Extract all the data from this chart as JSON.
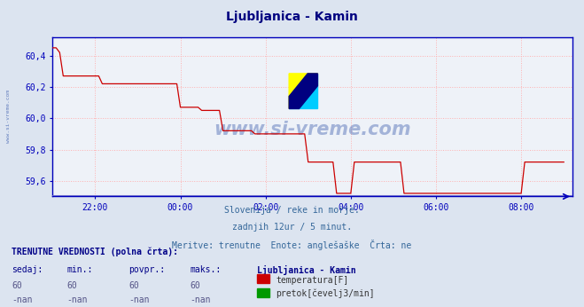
{
  "title": "Ljubljanica - Kamin",
  "title_color": "#000080",
  "bg_color": "#dce4f0",
  "plot_bg_color": "#eef2f8",
  "grid_color": "#ffb0b0",
  "axis_color": "#0000bb",
  "line_color": "#cc0000",
  "baseline_color": "#6666cc",
  "ylim": [
    59.5,
    60.52
  ],
  "yticks": [
    59.6,
    59.8,
    60.0,
    60.2,
    60.4
  ],
  "ytick_labels": [
    "59,6",
    "59,8",
    "60,0",
    "60,2",
    "60,4"
  ],
  "xtick_labels": [
    "22:00",
    "00:00",
    "02:00",
    "04:00",
    "06:00",
    "08:00"
  ],
  "subtitle_lines": [
    "Slovenija / reke in morje.",
    "zadnjih 12ur / 5 minut.",
    "Meritve: trenutne  Enote: anglešaške  Črta: ne"
  ],
  "footer_title": "TRENUTNE VREDNOSTI (polna črta):",
  "footer_cols": [
    "sedaj:",
    "min.:",
    "povpr.:",
    "maks.:",
    "Ljubljanica - Kamin"
  ],
  "footer_row1": [
    "60",
    "60",
    "60",
    "60"
  ],
  "footer_row2": [
    "-nan",
    "-nan",
    "-nan",
    "-nan"
  ],
  "legend_items": [
    {
      "label": "temperatura[F]",
      "color": "#cc0000"
    },
    {
      "label": "pretok[čevelj3/min]",
      "color": "#009900"
    }
  ],
  "watermark": "www.si-vreme.com",
  "watermark_color": "#3355aa",
  "left_label": "www.si-vreme.com",
  "time_data": [
    21.0,
    21.083,
    21.167,
    21.25,
    21.333,
    21.417,
    21.5,
    21.583,
    21.667,
    21.75,
    21.833,
    21.917,
    22.0,
    22.083,
    22.167,
    22.25,
    22.333,
    22.417,
    22.5,
    22.583,
    22.667,
    22.75,
    22.833,
    22.917,
    23.0,
    23.083,
    23.167,
    23.25,
    23.333,
    23.417,
    23.5,
    23.583,
    23.667,
    23.75,
    23.833,
    23.917,
    24.0,
    24.083,
    24.167,
    24.25,
    24.333,
    24.417,
    24.5,
    24.583,
    24.667,
    24.75,
    24.833,
    24.917,
    25.0,
    25.083,
    25.167,
    25.25,
    25.333,
    25.417,
    25.5,
    25.583,
    25.667,
    25.75,
    25.833,
    25.917,
    26.0,
    26.083,
    26.167,
    26.25,
    26.333,
    26.417,
    26.5,
    26.583,
    26.667,
    26.75,
    26.833,
    26.917,
    27.0,
    27.083,
    27.167,
    27.25,
    27.333,
    27.417,
    27.5,
    27.583,
    27.667,
    27.75,
    27.833,
    27.917,
    28.0,
    28.083,
    28.167,
    28.25,
    28.333,
    28.417,
    28.5,
    28.583,
    28.667,
    28.75,
    28.833,
    28.917,
    29.0,
    29.083,
    29.167,
    29.25,
    29.333,
    29.417,
    29.5,
    29.583,
    29.667,
    29.75,
    29.833,
    29.917,
    30.0,
    30.083,
    30.167,
    30.25,
    30.333,
    30.417,
    30.5,
    30.583,
    30.667,
    30.75,
    30.833,
    30.917,
    31.0,
    31.083,
    31.167,
    31.25,
    31.333,
    31.417,
    31.5,
    31.583,
    31.667,
    31.75,
    31.833,
    31.917,
    32.0,
    32.083,
    32.167,
    32.25,
    32.333,
    32.417,
    32.5,
    32.583,
    32.667,
    32.75,
    32.833,
    32.917,
    33.0
  ],
  "temp_data": [
    60.45,
    60.45,
    60.42,
    60.27,
    60.27,
    60.27,
    60.27,
    60.27,
    60.27,
    60.27,
    60.27,
    60.27,
    60.27,
    60.27,
    60.22,
    60.22,
    60.22,
    60.22,
    60.22,
    60.22,
    60.22,
    60.22,
    60.22,
    60.22,
    60.22,
    60.22,
    60.22,
    60.22,
    60.22,
    60.22,
    60.22,
    60.22,
    60.22,
    60.22,
    60.22,
    60.22,
    60.07,
    60.07,
    60.07,
    60.07,
    60.07,
    60.07,
    60.05,
    60.05,
    60.05,
    60.05,
    60.05,
    60.05,
    59.92,
    59.92,
    59.92,
    59.92,
    59.92,
    59.92,
    59.92,
    59.92,
    59.92,
    59.9,
    59.9,
    59.9,
    59.9,
    59.9,
    59.9,
    59.9,
    59.9,
    59.9,
    59.9,
    59.9,
    59.9,
    59.9,
    59.9,
    59.9,
    59.72,
    59.72,
    59.72,
    59.72,
    59.72,
    59.72,
    59.72,
    59.72,
    59.52,
    59.52,
    59.52,
    59.52,
    59.52,
    59.72,
    59.72,
    59.72,
    59.72,
    59.72,
    59.72,
    59.72,
    59.72,
    59.72,
    59.72,
    59.72,
    59.72,
    59.72,
    59.72,
    59.52,
    59.52,
    59.52,
    59.52,
    59.52,
    59.52,
    59.52,
    59.52,
    59.52,
    59.52,
    59.52,
    59.52,
    59.52,
    59.52,
    59.52,
    59.52,
    59.52,
    59.52,
    59.52,
    59.52,
    59.52,
    59.52,
    59.52,
    59.52,
    59.52,
    59.52,
    59.52,
    59.52,
    59.52,
    59.52,
    59.52,
    59.52,
    59.52,
    59.52,
    59.72,
    59.72,
    59.72,
    59.72,
    59.72,
    59.72,
    59.72,
    59.72,
    59.72,
    59.72,
    59.72,
    59.72
  ],
  "xlim": [
    21.0,
    33.2
  ],
  "xtick_positions": [
    22.0,
    24.0,
    26.0,
    28.0,
    30.0,
    32.0
  ]
}
